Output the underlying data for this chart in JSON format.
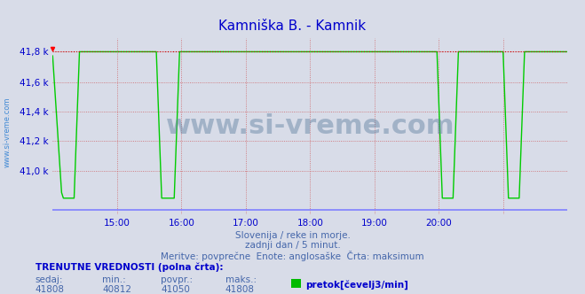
{
  "title": "Kamniška B. - Kamnik",
  "title_color": "#0000cc",
  "bg_color": "#d8dce8",
  "plot_bg_color": "#d8dce8",
  "line_color": "#00cc00",
  "max_line_color": "#cc0000",
  "zero_line_color": "#8080ff",
  "grid_color": "#cc4444",
  "ylabel_color": "#0000cc",
  "xlabel_color": "#0000cc",
  "ymin": 40700,
  "ymax": 41900,
  "yticks": [
    41000,
    41200,
    41400,
    41600,
    41808
  ],
  "ytick_labels": [
    "41,0 k",
    "41,2 k",
    "41,4 k",
    "41,6 k",
    "41,8 k"
  ],
  "xmin": 0,
  "xmax": 288,
  "xtick_positions": [
    36,
    72,
    108,
    144,
    180,
    216,
    252
  ],
  "xtick_labels": [
    "15:00",
    "16:00",
    "17:00",
    "18:00",
    "19:00",
    "20:00",
    ""
  ],
  "max_value": 41808,
  "min_value": 40812,
  "avg_value": 41050,
  "current_value": 41808,
  "station_name": "Kamniška B. - Kamnik",
  "unit": "pretok[čevelj3/min]",
  "legend_color": "#00bb00",
  "watermark": "www.si-vreme.com",
  "info_line1": "TRENUTNE VREDNOSTI (polna črta):",
  "info_labels": [
    "sedaj:",
    "min.:",
    "povpr.:",
    "maks.:"
  ],
  "info_values": [
    "41808",
    "40812",
    "41050",
    "41808"
  ]
}
